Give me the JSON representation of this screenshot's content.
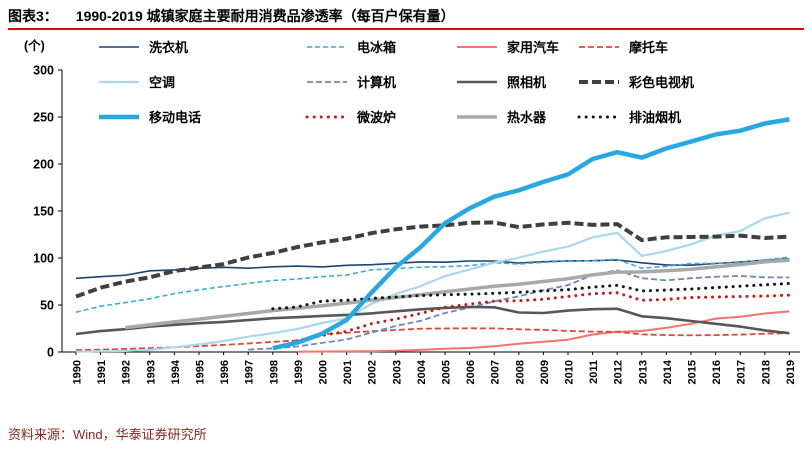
{
  "header": {
    "label": "图表3：",
    "title": "1990-2019 城镇家庭主要耐用消费品渗透率（每百户保有量）"
  },
  "footer": {
    "source": "资料来源：Wind，华泰证券研究所"
  },
  "colors": {
    "accent_rule": "#e60012",
    "source_text": "#8e241c"
  },
  "chart_data": {
    "type": "line",
    "title": "1990-2019 城镇家庭主要耐用消费品渗透率（每百户保有量）",
    "unit_label": "(个)",
    "ylim": [
      0,
      300
    ],
    "yticks": [
      0,
      50,
      100,
      150,
      200,
      250,
      300
    ],
    "grid": false,
    "legend_position": "top",
    "x": [
      1990,
      1991,
      1992,
      1993,
      1994,
      1995,
      1996,
      1997,
      1998,
      1999,
      2000,
      2001,
      2002,
      2003,
      2004,
      2005,
      2006,
      2007,
      2008,
      2009,
      2010,
      2011,
      2012,
      2013,
      2014,
      2015,
      2016,
      2017,
      2018,
      2019
    ],
    "series": [
      {
        "key": "washing_machine",
        "name": "洗衣机",
        "color": "#1f4270",
        "dash": null,
        "width": 1.6,
        "values": [
          78.4,
          80.1,
          81.7,
          86.4,
          87.3,
          89.0,
          90.1,
          89.1,
          90.6,
          91.4,
          90.5,
          92.2,
          92.9,
          94.4,
          95.9,
          95.5,
          96.8,
          96.8,
          94.7,
          96.1,
          96.9,
          97.1,
          98.0,
          94.9,
          92.7,
          92.3,
          94.2,
          95.7,
          97.7,
          99.2
        ]
      },
      {
        "key": "refrigerator",
        "name": "电冰箱",
        "color": "#3fa9dc",
        "dash": "5 3",
        "width": 1.6,
        "values": [
          42.3,
          48.7,
          52.6,
          56.7,
          62.1,
          66.2,
          69.7,
          73.0,
          76.1,
          77.7,
          80.1,
          81.9,
          87.4,
          88.7,
          90.2,
          90.7,
          91.8,
          95.0,
          93.6,
          95.4,
          96.6,
          97.2,
          98.5,
          89.2,
          91.2,
          94.0,
          94.4,
          95.0,
          98.0,
          100.9
        ]
      },
      {
        "key": "family_car",
        "name": "家用汽车",
        "color": "#f4736c",
        "dash": null,
        "width": 2,
        "values": [
          null,
          null,
          null,
          null,
          null,
          null,
          null,
          null,
          null,
          0.3,
          0.5,
          0.6,
          0.9,
          1.4,
          2.2,
          3.4,
          4.3,
          6.1,
          8.8,
          10.9,
          13.1,
          18.6,
          21.5,
          22.3,
          25.7,
          30.0,
          35.5,
          37.5,
          41.0,
          43.2
        ]
      },
      {
        "key": "motorcycle",
        "name": "摩托车",
        "color": "#e2453d",
        "dash": "6 3",
        "width": 1.8,
        "values": [
          1.9,
          2.6,
          3.3,
          4.1,
          5.0,
          6.3,
          7.6,
          9.0,
          10.7,
          12.3,
          18.8,
          20.4,
          22.1,
          23.4,
          24.8,
          25.0,
          25.2,
          25.1,
          24.1,
          23.5,
          22.5,
          21.7,
          21.5,
          18.7,
          18.0,
          17.8,
          18.0,
          18.5,
          19.5,
          20.0
        ]
      },
      {
        "key": "air_conditioner",
        "name": "空调",
        "color": "#a9d7ed",
        "dash": null,
        "width": 2.2,
        "values": [
          0.3,
          0.8,
          1.2,
          2.3,
          5.0,
          8.1,
          11.6,
          16.3,
          20.0,
          24.5,
          30.8,
          35.8,
          51.1,
          61.8,
          70.0,
          80.7,
          87.8,
          95.1,
          100.3,
          106.8,
          112.1,
          122.0,
          126.8,
          102.2,
          107.3,
          114.6,
          123.7,
          128.6,
          142.2,
          148.3
        ]
      },
      {
        "key": "computer",
        "name": "计算机",
        "color": "#6d88b8",
        "dash": "6 3",
        "width": 1.8,
        "values": [
          null,
          null,
          null,
          null,
          null,
          null,
          null,
          2.6,
          3.8,
          5.9,
          9.7,
          13.3,
          20.6,
          27.8,
          33.1,
          41.5,
          47.2,
          53.8,
          59.3,
          65.7,
          71.2,
          81.9,
          87.0,
          78.5,
          76.2,
          78.5,
          80.0,
          80.8,
          79.5,
          79.3
        ]
      },
      {
        "key": "camera",
        "name": "照相机",
        "color": "#575757",
        "dash": null,
        "width": 2.6,
        "values": [
          19.2,
          22.2,
          24.3,
          27.0,
          28.9,
          30.6,
          32.0,
          33.9,
          36.0,
          37.0,
          38.4,
          39.5,
          41.1,
          43.3,
          45.4,
          46.9,
          48.0,
          47.6,
          42.0,
          41.5,
          44.0,
          45.5,
          46.0,
          38.0,
          36.0,
          33.0,
          30.0,
          27.0,
          23.0,
          20.0
        ]
      },
      {
        "key": "color_tv",
        "name": "彩色电视机",
        "color": "#3f3f3f",
        "dash": "9 4",
        "width": 4,
        "values": [
          59.0,
          68.4,
          74.9,
          79.5,
          86.2,
          89.8,
          93.5,
          100.5,
          105.4,
          111.6,
          116.6,
          120.5,
          126.4,
          130.5,
          133.4,
          134.8,
          137.4,
          137.8,
          132.9,
          135.7,
          137.4,
          135.2,
          136.1,
          119.0,
          122.0,
          122.3,
          122.8,
          123.8,
          121.3,
          122.8
        ]
      },
      {
        "key": "mobile_phone",
        "name": "移动电话",
        "color": "#29a8e0",
        "dash": null,
        "width": 4.5,
        "values": [
          null,
          null,
          null,
          null,
          null,
          null,
          null,
          null,
          4.0,
          10.0,
          19.5,
          34.0,
          62.9,
          90.1,
          111.4,
          137.0,
          152.9,
          165.2,
          172.0,
          181.0,
          188.9,
          205.3,
          212.6,
          206.8,
          216.6,
          223.8,
          231.4,
          235.4,
          243.1,
          247.4
        ]
      },
      {
        "key": "microwave",
        "name": "微波炉",
        "color": "#bf1e1e",
        "dash": "dot",
        "width": 3,
        "values": [
          null,
          null,
          null,
          null,
          null,
          null,
          null,
          null,
          null,
          12.0,
          17.6,
          22.0,
          30.0,
          35.0,
          41.0,
          47.6,
          51.0,
          54.0,
          54.5,
          56.2,
          59.0,
          62.0,
          63.0,
          55.0,
          56.0,
          58.0,
          58.5,
          59.0,
          59.5,
          60.5
        ]
      },
      {
        "key": "water_heater",
        "name": "热水器",
        "color": "#a8a8a8",
        "dash": null,
        "width": 3.5,
        "values": [
          null,
          null,
          26.0,
          29.0,
          32.0,
          35.0,
          38.0,
          41.0,
          44.0,
          46.5,
          49.1,
          52.0,
          55.0,
          58.0,
          61.0,
          64.0,
          67.0,
          70.0,
          72.0,
          75.0,
          78.0,
          82.0,
          85.0,
          85.2,
          86.5,
          88.0,
          90.5,
          93.0,
          96.0,
          97.6
        ]
      },
      {
        "key": "range_hood",
        "name": "排油烟机",
        "color": "#141414",
        "dash": "dot",
        "width": 3,
        "values": [
          null,
          null,
          null,
          null,
          null,
          null,
          null,
          null,
          46.0,
          48.0,
          54.1,
          55.0,
          57.0,
          58.5,
          60.0,
          61.0,
          61.5,
          62.5,
          63.5,
          65.0,
          66.3,
          69.0,
          71.0,
          65.0,
          66.0,
          67.0,
          68.5,
          70.0,
          71.5,
          73.0
        ]
      }
    ]
  }
}
